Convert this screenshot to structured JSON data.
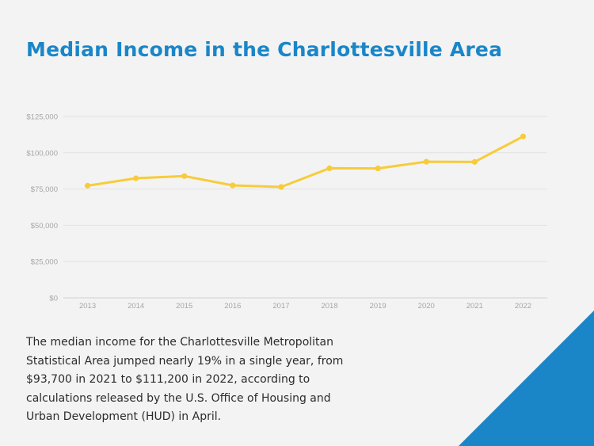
{
  "page": {
    "title": "Median Income in the Charlottesville Area",
    "description": "The median income for the Charlottesville Metropolitan Statistical Area jumped nearly 19% in a single year, from $93,700 in 2021 to $111,200 in 2022, according to calculations released by the U.S. Office of Housing and Urban Development (HUD) in April."
  },
  "colors": {
    "title": "#1a86c8",
    "line": "#f7cc3a",
    "corner": "#1a86c8",
    "grid": "#e2e2e2",
    "tick_text": "#a6a6a6"
  },
  "chart_data": {
    "type": "line",
    "title": "",
    "xlabel": "",
    "ylabel": "",
    "x": [
      "2013",
      "2014",
      "2015",
      "2016",
      "2017",
      "2018",
      "2019",
      "2020",
      "2021",
      "2022"
    ],
    "series": [
      {
        "values": [
          77300,
          82400,
          83900,
          77500,
          76400,
          89300,
          89200,
          93800,
          93700,
          111200
        ]
      }
    ],
    "ylim": [
      0,
      125000
    ],
    "yticks": [
      0,
      25000,
      50000,
      75000,
      100000,
      125000
    ],
    "ytick_labels": [
      "$0",
      "$25,000",
      "$50,000",
      "$75,000",
      "$100,000",
      "$125,000"
    ],
    "grid": "horizontal",
    "legend": "none"
  }
}
